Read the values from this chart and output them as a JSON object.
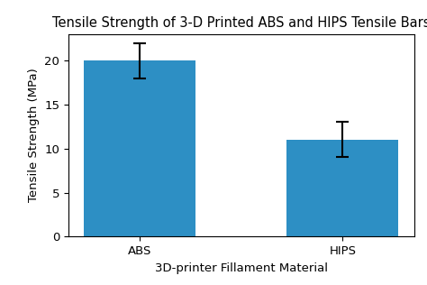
{
  "categories": [
    "ABS",
    "HIPS"
  ],
  "values": [
    20.0,
    11.0
  ],
  "errors": [
    2.0,
    2.0
  ],
  "bar_color": "#2D8FC4",
  "title": "Tensile Strength of 3-D Printed ABS and HIPS Tensile Bars",
  "xlabel": "3D-printer Fillament Material",
  "ylabel": "Tensile Strength (MPa)",
  "ylim": [
    0,
    23
  ],
  "title_fontsize": 10.5,
  "label_fontsize": 9.5,
  "tick_fontsize": 9.5,
  "bar_width": 0.55,
  "capsize": 5
}
